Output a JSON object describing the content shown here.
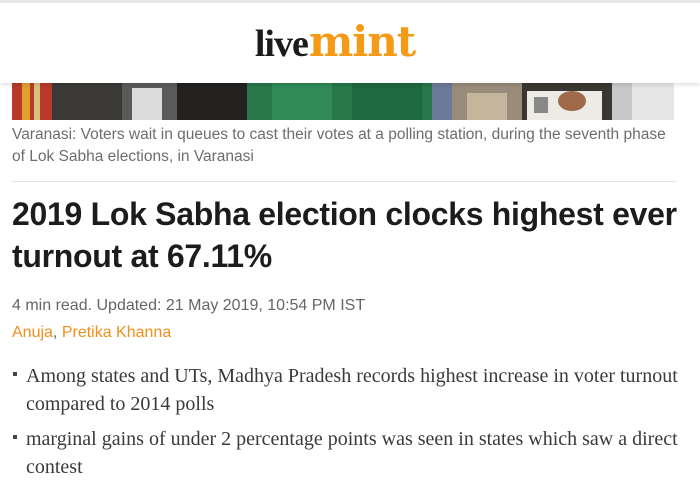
{
  "brand": {
    "logo_live": "live",
    "logo_mint": "mint",
    "mint_color": "#f59a16"
  },
  "image": {
    "caption": "Varanasi: Voters wait in queues to cast their votes at a polling station, during the seventh phase of Lok Sabha elections, in Varanasi"
  },
  "article": {
    "headline": "2019 Lok Sabha election clocks highest ever turnout at 67.11%",
    "read_time": "4 min read",
    "updated": ". Updated: 21 May 2019, 10:54 PM IST",
    "authors": [
      "Anuja",
      "Pretika Khanna"
    ],
    "author_separator": ", ",
    "summary": [
      "Among states and UTs, Madhya Pradesh records highest increase in voter turnout compared to 2014 polls",
      "marginal gains of under 2 percentage points was seen in states which saw a direct contest"
    ]
  }
}
